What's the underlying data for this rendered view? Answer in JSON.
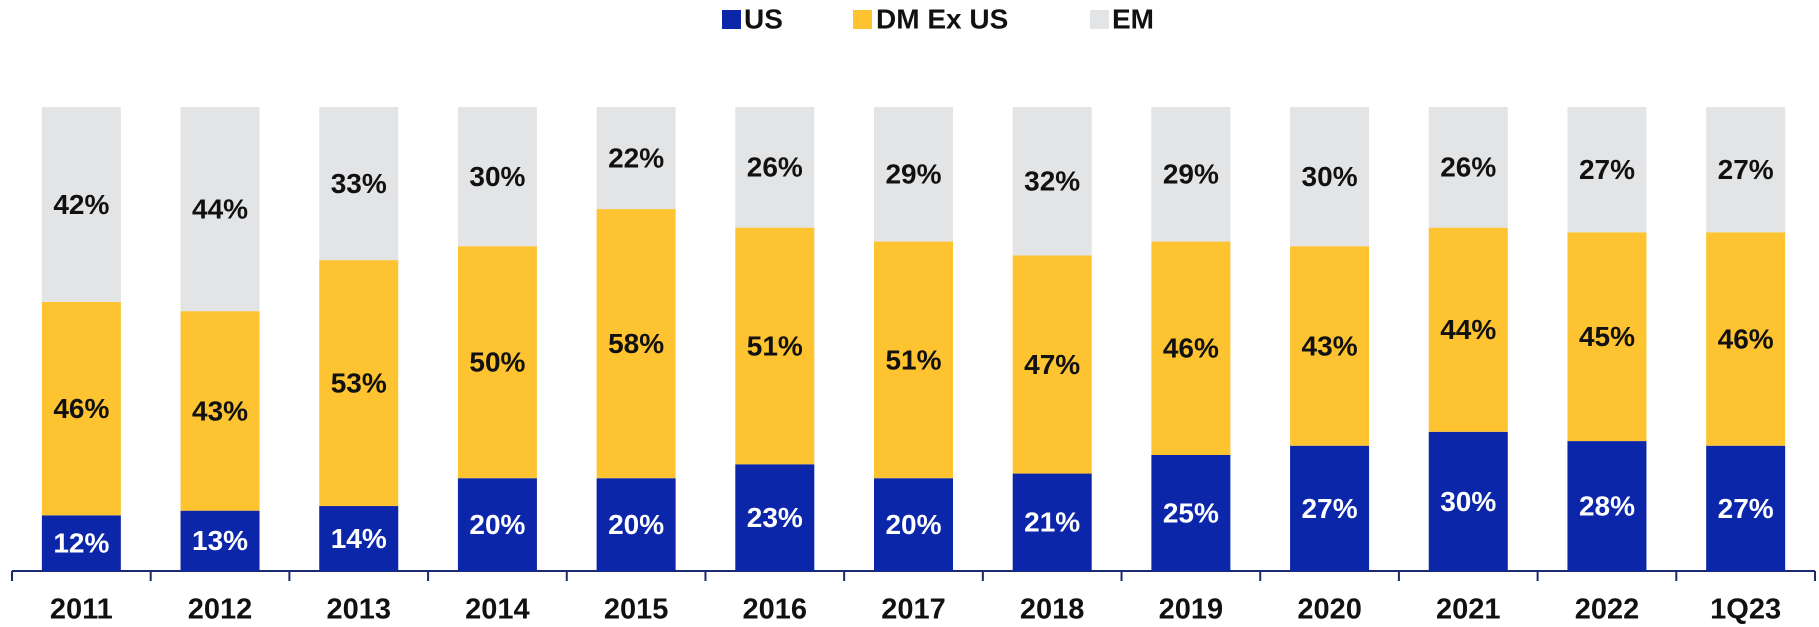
{
  "chart_data": {
    "type": "stacked_bar",
    "categories": [
      "2011",
      "2012",
      "2013",
      "2014",
      "2015",
      "2016",
      "2017",
      "2018",
      "2019",
      "2020",
      "2021",
      "2022",
      "1Q23"
    ],
    "series": [
      {
        "name": "US",
        "color": "#0b26a8",
        "values": [
          12,
          13,
          14,
          20,
          20,
          23,
          20,
          21,
          25,
          27,
          30,
          28,
          27
        ],
        "value_labels": [
          "12%",
          "13%",
          "14%",
          "20%",
          "20%",
          "23%",
          "20%",
          "21%",
          "25%",
          "27%",
          "30%",
          "28%",
          "27%"
        ]
      },
      {
        "name": "DM Ex US",
        "color": "#fdc330",
        "values": [
          46,
          43,
          53,
          50,
          58,
          51,
          51,
          47,
          46,
          43,
          44,
          45,
          46
        ],
        "value_labels": [
          "46%",
          "43%",
          "53%",
          "50%",
          "58%",
          "51%",
          "51%",
          "47%",
          "46%",
          "43%",
          "44%",
          "45%",
          "46%"
        ]
      },
      {
        "name": "EM",
        "color": "#e3e4e6",
        "values": [
          42,
          44,
          33,
          30,
          22,
          26,
          29,
          32,
          29,
          30,
          26,
          27,
          27
        ],
        "value_labels": [
          "42%",
          "44%",
          "33%",
          "30%",
          "22%",
          "26%",
          "29%",
          "32%",
          "29%",
          "30%",
          "26%",
          "27%",
          "27%"
        ]
      }
    ],
    "ylim": [
      0,
      100
    ],
    "legend": "top"
  }
}
